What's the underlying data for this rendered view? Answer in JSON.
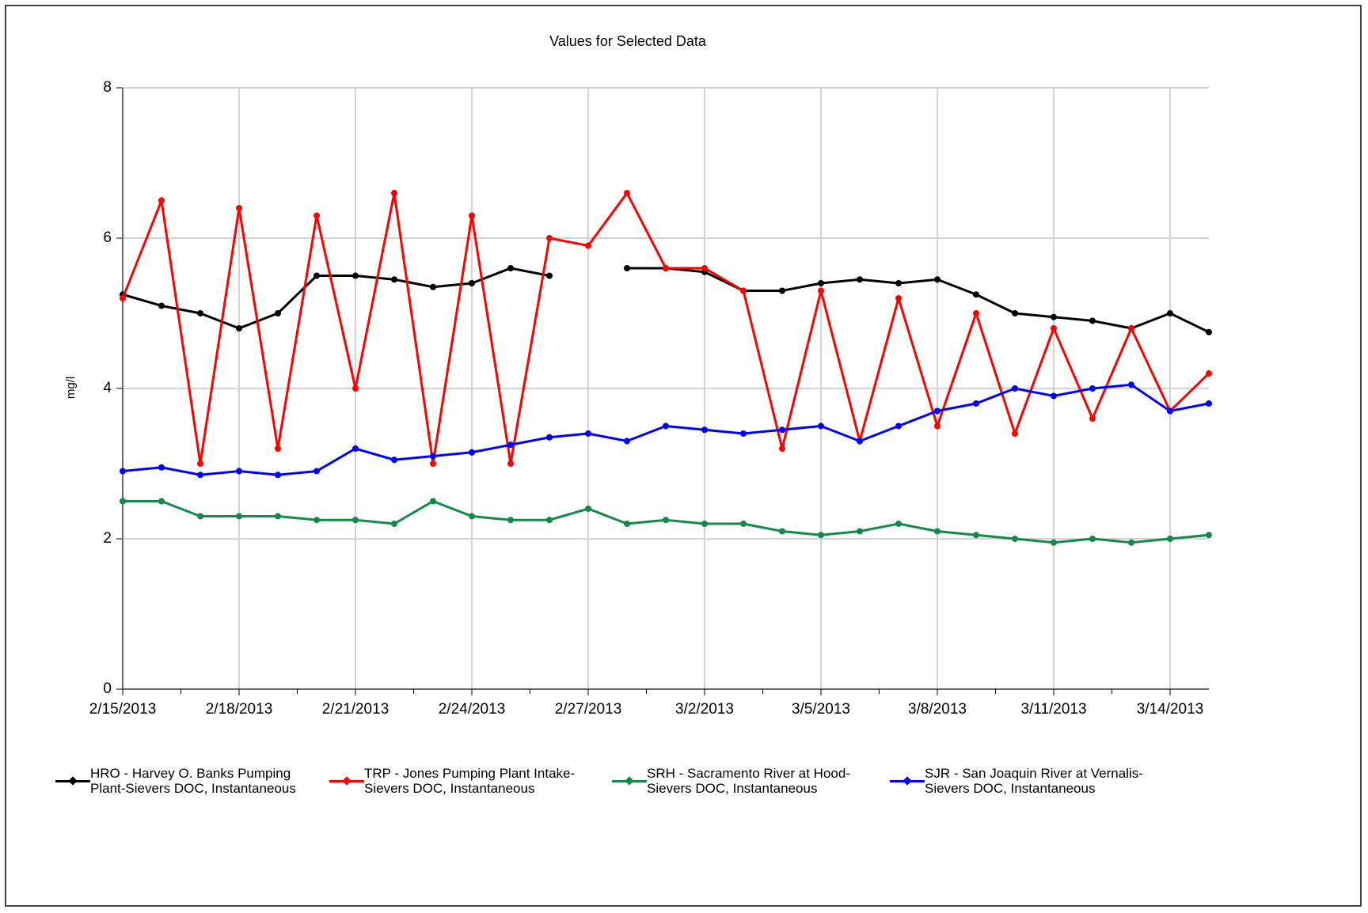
{
  "chart_data": {
    "type": "line",
    "title": "Values for Selected Data",
    "y_label": "mg/l",
    "x": [
      "2/15/2013",
      "2/16/2013",
      "2/17/2013",
      "2/18/2013",
      "2/19/2013",
      "2/20/2013",
      "2/21/2013",
      "2/22/2013",
      "2/23/2013",
      "2/24/2013",
      "2/25/2013",
      "2/26/2013",
      "2/27/2013",
      "2/28/2013",
      "3/1/2013",
      "3/2/2013",
      "3/3/2013",
      "3/4/2013",
      "3/5/2013",
      "3/6/2013",
      "3/7/2013",
      "3/8/2013",
      "3/9/2013",
      "3/10/2013",
      "3/11/2013",
      "3/12/2013",
      "3/13/2013",
      "3/14/2013",
      "3/15/2013"
    ],
    "series": [
      {
        "name": "HRO - Harvey O. Banks Pumping Plant-Sievers DOC, Instantaneous",
        "color": "#000000",
        "values": [
          5.25,
          5.1,
          5.0,
          4.8,
          5.0,
          5.5,
          5.5,
          5.45,
          5.35,
          5.4,
          5.6,
          5.5,
          null,
          5.6,
          5.6,
          5.55,
          5.3,
          5.3,
          5.4,
          5.45,
          5.4,
          5.45,
          5.25,
          5.0,
          4.95,
          4.9,
          4.8,
          5.0,
          4.75
        ]
      },
      {
        "name": "TRP - Jones Pumping Plant Intake-Sievers DOC, Instantaneous",
        "color": "#ff0000",
        "values": [
          5.2,
          6.5,
          3.0,
          6.4,
          3.2,
          6.3,
          4.0,
          6.6,
          3.0,
          6.3,
          3.0,
          6.0,
          5.9,
          6.6,
          5.6,
          5.6,
          5.3,
          3.2,
          5.3,
          3.3,
          5.2,
          3.5,
          5.0,
          3.4,
          4.8,
          3.6,
          4.8,
          3.7,
          4.2
        ]
      },
      {
        "name": "SRH - Sacramento River at Hood-Sievers DOC, Instantaneous",
        "color": "#138a4a",
        "values": [
          2.5,
          2.5,
          2.3,
          2.3,
          2.3,
          2.25,
          2.25,
          2.2,
          2.5,
          2.3,
          2.25,
          2.25,
          2.4,
          2.2,
          2.25,
          2.2,
          2.2,
          2.1,
          2.05,
          2.1,
          2.2,
          2.1,
          2.05,
          2.0,
          1.95,
          2.0,
          1.95,
          2.0,
          2.05
        ]
      },
      {
        "name": "SJR - San Joaquin River at Vernalis-Sievers DOC, Instantaneous",
        "color": "#0000ff",
        "values": [
          2.9,
          2.95,
          2.85,
          2.9,
          2.85,
          2.9,
          3.2,
          3.05,
          3.1,
          3.15,
          3.25,
          3.35,
          3.4,
          3.3,
          3.5,
          3.45,
          3.4,
          3.45,
          3.5,
          3.3,
          3.5,
          3.7,
          3.8,
          4.0,
          3.9,
          4.0,
          4.05,
          3.7,
          3.8
        ]
      }
    ],
    "xlim": [
      "2/15/2013",
      "3/15/2013"
    ],
    "xticks": [
      "2/15/2013",
      "2/18/2013",
      "2/21/2013",
      "2/24/2013",
      "2/27/2013",
      "3/2/2013",
      "3/5/2013",
      "3/8/2013",
      "3/11/2013",
      "3/14/2013"
    ],
    "ylim": [
      0,
      8
    ],
    "yticks": [
      0,
      2,
      4,
      6,
      8
    ],
    "grid": true
  }
}
